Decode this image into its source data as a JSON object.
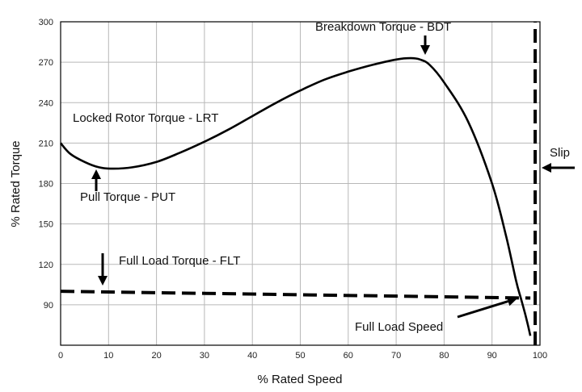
{
  "chart_data": {
    "type": "line",
    "title": "",
    "xlabel": "% Rated Speed",
    "ylabel": "% Rated Torque",
    "xlim": [
      0,
      100
    ],
    "ylim": [
      60,
      300
    ],
    "grid": true,
    "x_ticks": [
      "0",
      "10",
      "20",
      "30",
      "40",
      "50",
      "60",
      "70",
      "80",
      "90",
      "100"
    ],
    "y_ticks": [
      "90",
      "120",
      "150",
      "180",
      "210",
      "240",
      "270",
      "300"
    ],
    "series": [
      {
        "x": [
          0,
          2,
          5,
          8,
          11,
          15,
          20,
          25,
          30,
          35,
          40,
          45,
          50,
          55,
          60,
          65,
          70,
          73,
          75,
          77,
          80,
          85,
          90,
          93,
          95,
          96,
          97,
          98
        ],
        "y": [
          210,
          202,
          196,
          192,
          191,
          192,
          196,
          203,
          211,
          220,
          230,
          240,
          249,
          257,
          263,
          268,
          272,
          273,
          272,
          268,
          255,
          226,
          180,
          140,
          108,
          95,
          82,
          67
        ]
      }
    ],
    "reference_lines": [
      {
        "orientation": "horizontal",
        "x": [
          0,
          98
        ],
        "y": [
          100,
          95
        ],
        "style": "dashed"
      },
      {
        "orientation": "vertical",
        "x": 99,
        "y": [
          60,
          300
        ],
        "style": "dashed"
      }
    ],
    "annotations": [
      {
        "text": "Breakdown Torque - BDT",
        "x": 77,
        "y": 273
      },
      {
        "text": "Locked Rotor Torque - LRT",
        "x": 0,
        "y": 210
      },
      {
        "text": "Pull Torque - PUT",
        "x": 9,
        "y": 191
      },
      {
        "text": "Full Load Torque - FLT",
        "x": 10,
        "y": 100
      },
      {
        "text": "Slip",
        "x": 100,
        "y": 195
      },
      {
        "text": "Full Load Speed",
        "x": 98,
        "y": 95
      }
    ]
  },
  "colors": {
    "line": "#000000",
    "grid": "#b8b8b8",
    "axis": "#000000",
    "background": "#ffffff"
  }
}
